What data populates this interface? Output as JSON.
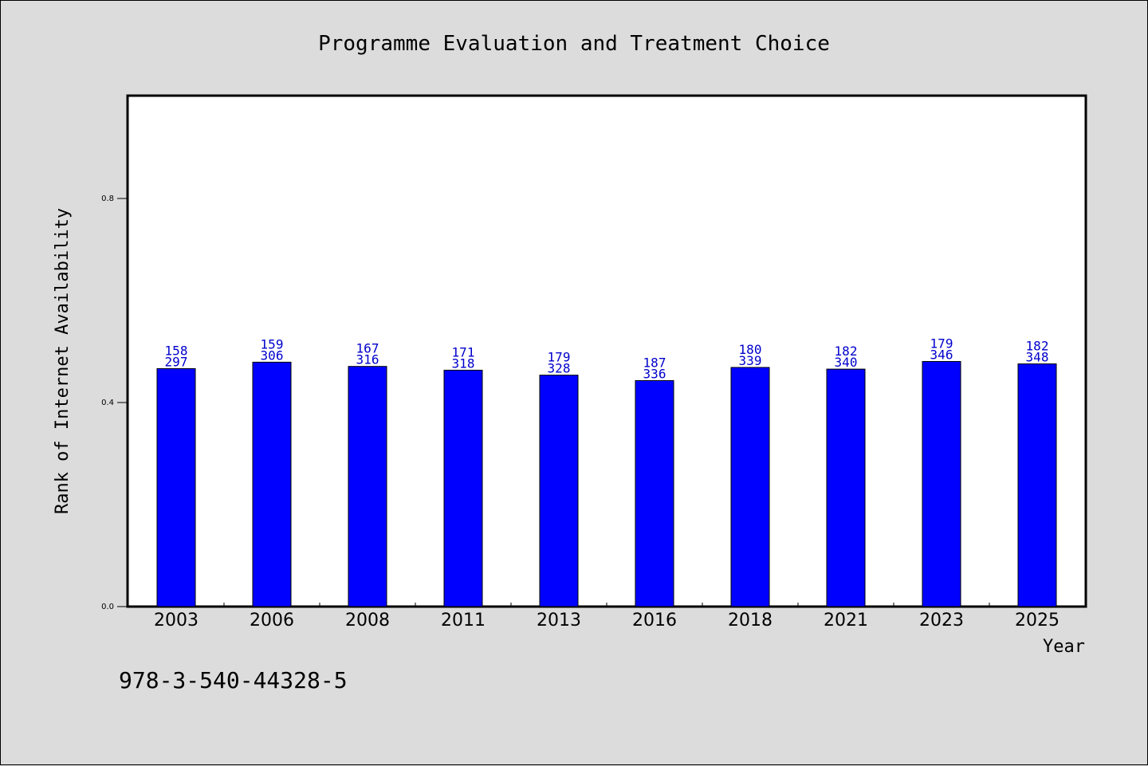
{
  "chart_data": {
    "type": "bar",
    "title": "Programme Evaluation and Treatment Choice",
    "xlabel": "Year",
    "ylabel": "Rank of Internet Availability",
    "categories": [
      "2003",
      "2006",
      "2008",
      "2011",
      "2013",
      "2016",
      "2018",
      "2021",
      "2023",
      "2025"
    ],
    "values": [
      0.4665,
      0.4791,
      0.4708,
      0.4634,
      0.4537,
      0.443,
      0.4688,
      0.4655,
      0.4805,
      0.4758
    ],
    "label_top": [
      "158",
      "159",
      "167",
      "171",
      "179",
      "187",
      "180",
      "182",
      "179",
      "182"
    ],
    "label_bottom": [
      "297",
      "306",
      "316",
      "318",
      "328",
      "336",
      "339",
      "340",
      "346",
      "348"
    ],
    "ylim": [
      0,
      1.0
    ],
    "yticks": [
      "0.0",
      "0.4",
      "0.8"
    ],
    "grid": false,
    "bar_color": "#0000ff",
    "label_color": "#0000cc"
  },
  "footer_text": "978-3-540-44328-5"
}
